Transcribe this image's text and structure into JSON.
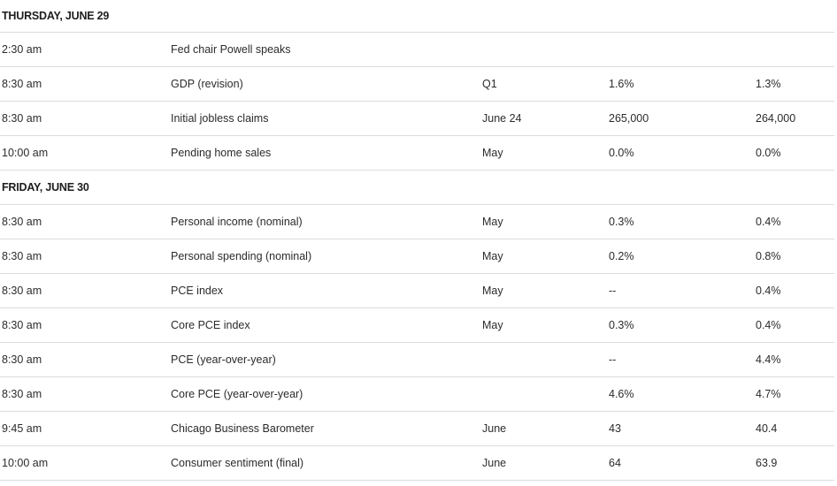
{
  "days": [
    {
      "header": "THURSDAY, JUNE 29",
      "rows": [
        {
          "time": "2:30 am",
          "event": "Fed chair Powell speaks",
          "period": "",
          "forecast": "",
          "previous": ""
        },
        {
          "time": "8:30 am",
          "event": "GDP (revision)",
          "period": "Q1",
          "forecast": "1.6%",
          "previous": "1.3%"
        },
        {
          "time": "8:30 am",
          "event": "Initial jobless claims",
          "period": "June 24",
          "forecast": "265,000",
          "previous": "264,000"
        },
        {
          "time": "10:00 am",
          "event": "Pending home sales",
          "period": "May",
          "forecast": "0.0%",
          "previous": "0.0%"
        }
      ]
    },
    {
      "header": "FRIDAY, JUNE 30",
      "rows": [
        {
          "time": "8:30 am",
          "event": "Personal income (nominal)",
          "period": "May",
          "forecast": "0.3%",
          "previous": "0.4%"
        },
        {
          "time": "8:30 am",
          "event": "Personal spending (nominal)",
          "period": "May",
          "forecast": "0.2%",
          "previous": "0.8%"
        },
        {
          "time": "8:30 am",
          "event": "PCE index",
          "period": "May",
          "forecast": "--",
          "previous": "0.4%"
        },
        {
          "time": "8:30 am",
          "event": "Core PCE index",
          "period": "May",
          "forecast": "0.3%",
          "previous": "0.4%"
        },
        {
          "time": "8:30 am",
          "event": "PCE (year-over-year)",
          "period": "",
          "forecast": "--",
          "previous": "4.4%"
        },
        {
          "time": "8:30 am",
          "event": "Core PCE (year-over-year)",
          "period": "",
          "forecast": "4.6%",
          "previous": "4.7%"
        },
        {
          "time": "9:45 am",
          "event": "Chicago Business Barometer",
          "period": "June",
          "forecast": "43",
          "previous": "40.4"
        },
        {
          "time": "10:00 am",
          "event": "Consumer sentiment (final)",
          "period": "June",
          "forecast": "64",
          "previous": "63.9"
        }
      ]
    }
  ]
}
